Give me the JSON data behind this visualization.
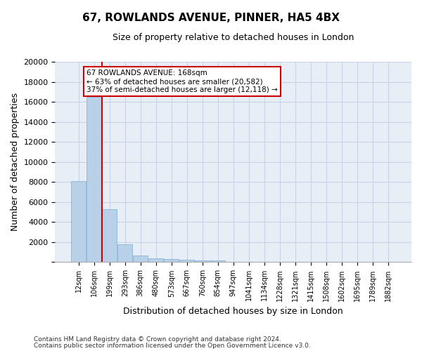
{
  "title": "67, ROWLANDS AVENUE, PINNER, HA5 4BX",
  "subtitle": "Size of property relative to detached houses in London",
  "xlabel": "Distribution of detached houses by size in London",
  "ylabel": "Number of detached properties",
  "bar_color": "#b8d0e8",
  "bar_edge_color": "#7aafd4",
  "grid_color": "#c8d4e4",
  "background_color": "#e8eef6",
  "annotation_box_color": "#cc0000",
  "vline_color": "#cc0000",
  "categories": [
    "12sqm",
    "106sqm",
    "199sqm",
    "293sqm",
    "386sqm",
    "480sqm",
    "573sqm",
    "667sqm",
    "760sqm",
    "854sqm",
    "947sqm",
    "1041sqm",
    "1134sqm",
    "1228sqm",
    "1321sqm",
    "1415sqm",
    "1508sqm",
    "1602sqm",
    "1695sqm",
    "1789sqm",
    "1882sqm"
  ],
  "values": [
    8100,
    16500,
    5300,
    1750,
    650,
    350,
    280,
    220,
    190,
    160,
    0,
    0,
    0,
    0,
    0,
    0,
    0,
    0,
    0,
    0,
    0
  ],
  "ylim": [
    0,
    20000
  ],
  "yticks": [
    0,
    2000,
    4000,
    6000,
    8000,
    10000,
    12000,
    14000,
    16000,
    18000,
    20000
  ],
  "property_label": "67 ROWLANDS AVENUE: 168sqm",
  "annotation_line1": "← 63% of detached houses are smaller (20,582)",
  "annotation_line2": "37% of semi-detached houses are larger (12,118) →",
  "vline_x_index": 1.5,
  "footnote1": "Contains HM Land Registry data © Crown copyright and database right 2024.",
  "footnote2": "Contains public sector information licensed under the Open Government Licence v3.0."
}
